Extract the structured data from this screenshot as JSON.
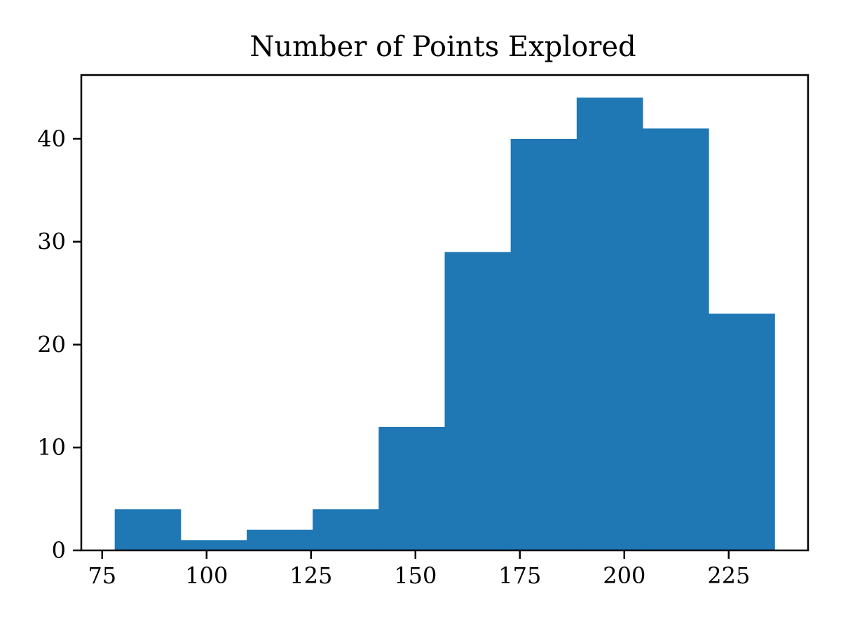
{
  "chart_data": {
    "type": "bar",
    "title": "Number of Points Explored",
    "xlabel": "",
    "ylabel": "",
    "xlim": [
      70,
      244
    ],
    "ylim": [
      0,
      46.2
    ],
    "bin_edges": [
      78,
      93.8,
      109.6,
      125.4,
      141.2,
      157.0,
      172.8,
      188.6,
      204.4,
      220.2,
      236.0
    ],
    "values": [
      4,
      1,
      2,
      4,
      12,
      29,
      40,
      44,
      41,
      23
    ],
    "xticks": [
      75,
      100,
      125,
      150,
      175,
      200,
      225
    ],
    "yticks": [
      0,
      10,
      20,
      30,
      40
    ],
    "grid": false,
    "bar_color": "#1f77b4"
  }
}
